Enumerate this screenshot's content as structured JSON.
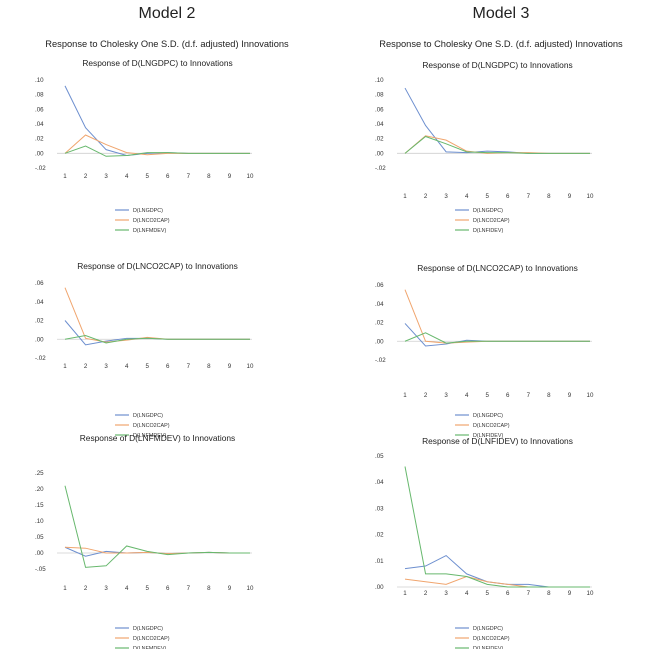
{
  "colors": {
    "D(LNGDPC)": "#6d8fcf",
    "D(LNCO2CAP)": "#f0a56e",
    "D(LNFMDEV)": "#67b86d",
    "D(LNFIDEV)": "#67b86d"
  },
  "models": [
    {
      "title": "Model 2",
      "subtitle": "Response to Cholesky One S.D. (d.f. adjusted) Innovations",
      "chart_data": [
        {
          "type": "line",
          "title": "Response of D(LNGDPC) to Innovations",
          "x": [
            1,
            2,
            3,
            4,
            5,
            6,
            7,
            8,
            9,
            10
          ],
          "ylim": [
            -0.02,
            0.1
          ],
          "yticks": [
            ".10",
            ".08",
            ".06",
            ".04",
            ".02",
            ".00",
            "-.02"
          ],
          "ytick_values": [
            0.1,
            0.08,
            0.06,
            0.04,
            0.02,
            0.0,
            -0.02
          ],
          "series": [
            {
              "name": "D(LNGDPC)",
              "values": [
                0.092,
                0.035,
                0.005,
                -0.003,
                0.0,
                0.001,
                0.0,
                0.0,
                0.0,
                0.0
              ]
            },
            {
              "name": "D(LNCO2CAP)",
              "values": [
                0.0,
                0.025,
                0.012,
                0.001,
                -0.002,
                0.0,
                0.0,
                0.0,
                0.0,
                0.0
              ]
            },
            {
              "name": "D(LNFMDEV)",
              "values": [
                0.0,
                0.01,
                -0.004,
                -0.003,
                0.001,
                0.001,
                0.0,
                0.0,
                0.0,
                0.0
              ]
            }
          ],
          "legend": [
            "D(LNGDPC)",
            "D(LNCO2CAP)",
            "D(LNFMDEV)"
          ]
        },
        {
          "type": "line",
          "title": "Response of D(LNCO2CAP) to Innovations",
          "x": [
            1,
            2,
            3,
            4,
            5,
            6,
            7,
            8,
            9,
            10
          ],
          "ylim": [
            -0.02,
            0.06
          ],
          "yticks": [
            ".06",
            ".04",
            ".02",
            ".00",
            "-.02"
          ],
          "ytick_values": [
            0.06,
            0.04,
            0.02,
            0.0,
            -0.02
          ],
          "series": [
            {
              "name": "D(LNGDPC)",
              "values": [
                0.02,
                -0.006,
                -0.002,
                0.001,
                0.001,
                0.0,
                0.0,
                0.0,
                0.0,
                0.0
              ]
            },
            {
              "name": "D(LNCO2CAP)",
              "values": [
                0.055,
                0.001,
                -0.003,
                -0.001,
                0.002,
                0.0,
                0.0,
                0.0,
                0.0,
                0.0
              ]
            },
            {
              "name": "D(LNFMDEV)",
              "values": [
                0.0,
                0.004,
                -0.004,
                0.0,
                0.001,
                0.0,
                0.0,
                0.0,
                0.0,
                0.0
              ]
            }
          ],
          "legend": [
            "D(LNGDPC)",
            "D(LNCO2CAP)",
            "D(LNFMDEV)"
          ]
        },
        {
          "type": "line",
          "title": "Response of D(LNFMDEV) to Innovations",
          "x": [
            1,
            2,
            3,
            4,
            5,
            6,
            7,
            8,
            9,
            10
          ],
          "ylim": [
            -0.05,
            0.25
          ],
          "yticks": [
            ".25",
            ".20",
            ".15",
            ".10",
            ".05",
            ".00",
            "-.05"
          ],
          "ytick_values": [
            0.25,
            0.2,
            0.15,
            0.1,
            0.05,
            0.0,
            -0.05
          ],
          "series": [
            {
              "name": "D(LNGDPC)",
              "values": [
                0.018,
                -0.01,
                0.005,
                0.0,
                0.002,
                -0.002,
                0.0,
                0.002,
                0.0,
                0.0
              ]
            },
            {
              "name": "D(LNCO2CAP)",
              "values": [
                0.018,
                0.015,
                0.0,
                0.0,
                0.002,
                -0.002,
                0.0,
                0.002,
                0.0,
                0.0
              ]
            },
            {
              "name": "D(LNFMDEV)",
              "values": [
                0.21,
                -0.045,
                -0.04,
                0.022,
                0.005,
                -0.005,
                0.0,
                0.002,
                0.0,
                0.0
              ]
            }
          ],
          "legend": [
            "D(LNGDPC)",
            "D(LNCO2CAP)",
            "D(LNFMDEV)"
          ]
        }
      ]
    },
    {
      "title": "Model 3",
      "subtitle": "Response to Cholesky One S.D. (d.f. adjusted) Innovations",
      "chart_data": [
        {
          "type": "line",
          "title": "Response of D(LNGDPC) to Innovations",
          "x": [
            1,
            2,
            3,
            4,
            5,
            6,
            7,
            8,
            9,
            10
          ],
          "ylim": [
            -0.02,
            0.1
          ],
          "yticks": [
            ".10",
            ".08",
            ".06",
            ".04",
            ".02",
            ".00",
            "-.02"
          ],
          "ytick_values": [
            0.1,
            0.08,
            0.06,
            0.04,
            0.02,
            0.0,
            -0.02
          ],
          "series": [
            {
              "name": "D(LNGDPC)",
              "values": [
                0.089,
                0.038,
                0.002,
                0.001,
                0.003,
                0.002,
                0.0,
                0.0,
                0.0,
                0.0
              ]
            },
            {
              "name": "D(LNCO2CAP)",
              "values": [
                0.0,
                0.024,
                0.018,
                0.003,
                0.0,
                0.001,
                0.001,
                0.0,
                0.0,
                0.0
              ]
            },
            {
              "name": "D(LNFIDEV)",
              "values": [
                0.0,
                0.023,
                0.013,
                0.002,
                0.001,
                0.001,
                0.0,
                0.0,
                0.0,
                0.0
              ]
            }
          ],
          "legend": [
            "D(LNGDPC)",
            "D(LNCO2CAP)",
            "D(LNFIDEV)"
          ]
        },
        {
          "type": "line",
          "title": "Response of D(LNCO2CAP) to Innovations",
          "x": [
            1,
            2,
            3,
            4,
            5,
            6,
            7,
            8,
            9,
            10
          ],
          "ylim": [
            -0.02,
            0.06
          ],
          "yticks": [
            ".06",
            ".04",
            ".02",
            ".00",
            "-.02"
          ],
          "ytick_values": [
            0.06,
            0.04,
            0.02,
            0.0,
            -0.02
          ],
          "series": [
            {
              "name": "D(LNGDPC)",
              "values": [
                0.019,
                -0.005,
                -0.003,
                0.001,
                0.0,
                0.0,
                0.0,
                0.0,
                0.0,
                0.0
              ]
            },
            {
              "name": "D(LNCO2CAP)",
              "values": [
                0.055,
                0.0,
                -0.002,
                -0.001,
                0.0,
                0.0,
                0.0,
                0.0,
                0.0,
                0.0
              ]
            },
            {
              "name": "D(LNFIDEV)",
              "values": [
                0.0,
                0.009,
                -0.002,
                0.0,
                0.0,
                0.0,
                0.0,
                0.0,
                0.0,
                0.0
              ]
            }
          ],
          "legend": [
            "D(LNGDPC)",
            "D(LNCO2CAP)",
            "D(LNFIDEV)"
          ]
        },
        {
          "type": "line",
          "title": "Response of D(LNFIDEV) to Innovations",
          "x": [
            1,
            2,
            3,
            4,
            5,
            6,
            7,
            8,
            9,
            10
          ],
          "ylim": [
            0.0,
            0.05
          ],
          "yticks": [
            ".05",
            ".04",
            ".03",
            ".02",
            ".01",
            ".00"
          ],
          "ytick_values": [
            0.05,
            0.04,
            0.03,
            0.02,
            0.01,
            0.0
          ],
          "series": [
            {
              "name": "D(LNGDPC)",
              "values": [
                0.007,
                0.008,
                0.012,
                0.005,
                0.002,
                0.001,
                0.001,
                0.0,
                0.0,
                0.0
              ]
            },
            {
              "name": "D(LNCO2CAP)",
              "values": [
                0.003,
                0.002,
                0.001,
                0.004,
                0.002,
                0.001,
                0.0,
                0.0,
                0.0,
                0.0
              ]
            },
            {
              "name": "D(LNFIDEV)",
              "values": [
                0.046,
                0.005,
                0.005,
                0.004,
                0.001,
                0.0,
                0.0,
                0.0,
                0.0,
                0.0
              ]
            }
          ],
          "legend": [
            "D(LNGDPC)",
            "D(LNCO2CAP)",
            "D(LNFIDEV)"
          ]
        }
      ]
    }
  ]
}
